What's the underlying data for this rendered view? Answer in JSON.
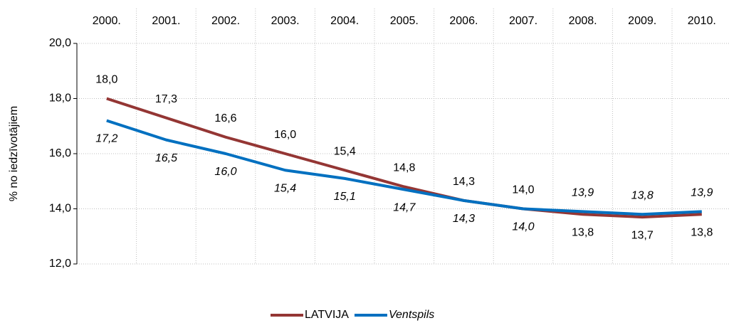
{
  "chart_data": {
    "type": "line",
    "y_label": "% no iedzīvotājiem",
    "categories": [
      "2000.",
      "2001.",
      "2002.",
      "2003.",
      "2004.",
      "2005.",
      "2006.",
      "2007.",
      "2008.",
      "2009.",
      "2010."
    ],
    "series": [
      {
        "name": "LATVIJA",
        "color": "#943634",
        "values": [
          18.0,
          17.3,
          16.6,
          16.0,
          15.4,
          14.8,
          14.3,
          14.0,
          13.8,
          13.7,
          13.8
        ],
        "value_labels": [
          "18,0",
          "17,3",
          "16,6",
          "16,0",
          "15,4",
          "14,8",
          "14,3",
          "14,0",
          "13,8",
          "13,7",
          "13,8"
        ]
      },
      {
        "name": "Ventspils",
        "color": "#0070c0",
        "values": [
          17.2,
          16.5,
          16.0,
          15.4,
          15.1,
          14.7,
          14.3,
          14.0,
          13.9,
          13.8,
          13.9
        ],
        "value_labels": [
          "17,2",
          "16,5",
          "16,0",
          "15,4",
          "15,1",
          "14,7",
          "14,3",
          "14,0",
          "13,9",
          "13,8",
          "13,9"
        ]
      }
    ],
    "ylim": [
      12,
      20
    ],
    "yticks": [
      {
        "value": 12,
        "label": "12,0"
      },
      {
        "value": 14,
        "label": "14,0"
      },
      {
        "value": 16,
        "label": "16,0"
      },
      {
        "value": 18,
        "label": "18,0"
      },
      {
        "value": 20,
        "label": "20,0"
      }
    ],
    "grid": true,
    "legend": "bottom"
  }
}
